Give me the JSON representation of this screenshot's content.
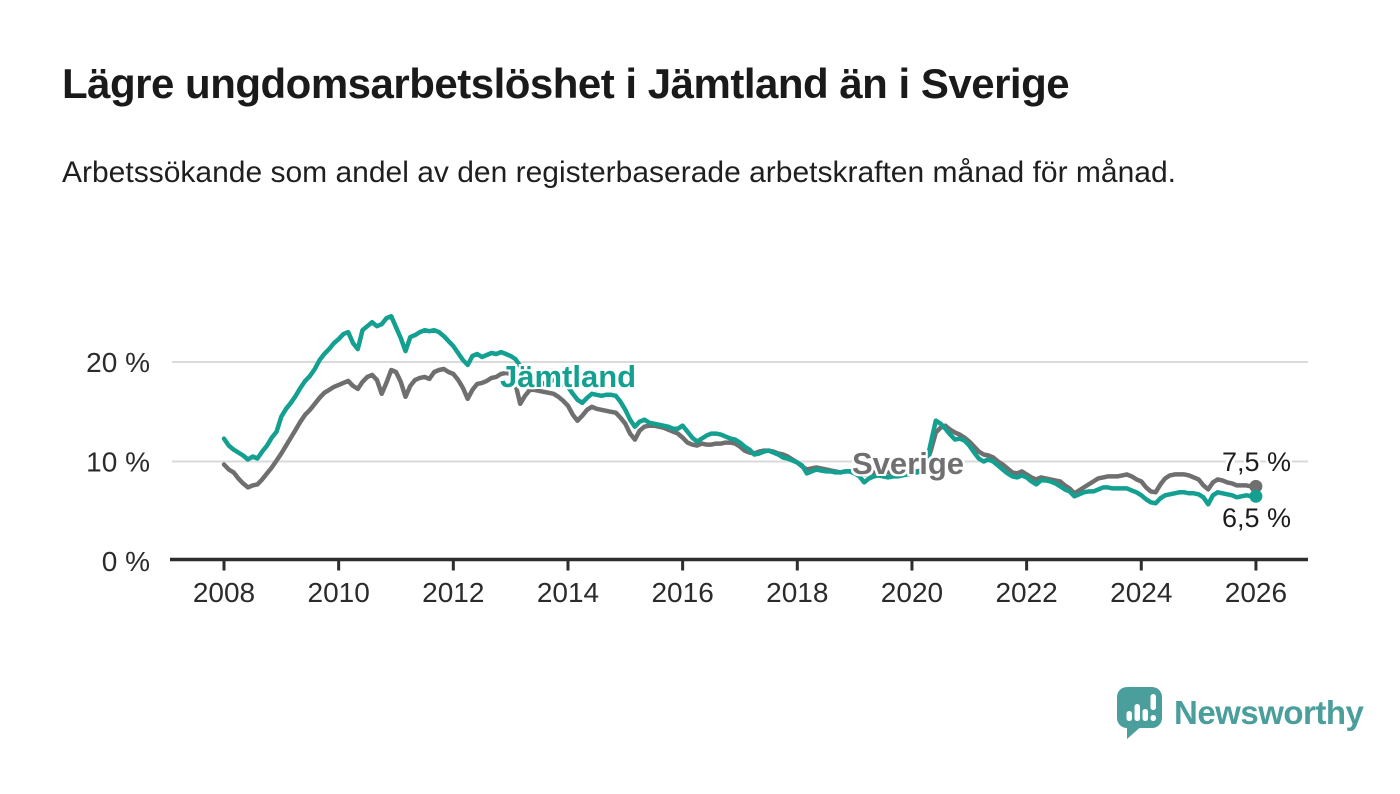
{
  "header": {
    "title": "Lägre ungdomsarbetslöshet i Jämtland än i Sverige",
    "subtitle": "Arbetssökande som andel av den registerbaserade arbetskraften månad för månad."
  },
  "branding": {
    "logo_text": "Newsworthy",
    "logo_color": "#4a9e9b"
  },
  "chart_data": {
    "type": "line",
    "title": "Lägre ungdomsarbetslöshet i Jämtland än i Sverige",
    "xlabel": "",
    "ylabel": "",
    "unit": "%",
    "grid": "horizontal",
    "legend": "inline-labels",
    "xlim": [
      2007.1,
      2026.9
    ],
    "ylim": [
      0,
      26
    ],
    "x_ticks": [
      "2008",
      "2010",
      "2012",
      "2014",
      "2016",
      "2018",
      "2020",
      "2022",
      "2024",
      "2026"
    ],
    "x_tick_years": [
      2008,
      2010,
      2012,
      2014,
      2016,
      2018,
      2020,
      2022,
      2024,
      2026
    ],
    "y_ticks": [
      {
        "v": 0,
        "label": "0 %"
      },
      {
        "v": 10,
        "label": "10 %"
      },
      {
        "v": 20,
        "label": "20 %"
      }
    ],
    "colors": {
      "jamtland": "#14a091",
      "sverige": "#6f6f6f",
      "gridline": "#dadada",
      "axis": "#2d2d2d",
      "tick_text": "#2b2b2b"
    },
    "series": [
      {
        "name": "Jämtland",
        "color": "#14a091",
        "end_label": "6,5 %",
        "end_value": 6.5,
        "start_year": 2008,
        "points_per_year": 12,
        "values": [
          12.3,
          11.6,
          11.2,
          10.9,
          10.6,
          10.2,
          10.5,
          10.3,
          11.0,
          11.6,
          12.4,
          13.0,
          14.5,
          15.3,
          15.9,
          16.6,
          17.4,
          18.1,
          18.6,
          19.3,
          20.2,
          20.8,
          21.3,
          21.9,
          22.3,
          22.8,
          23.0,
          21.9,
          21.3,
          23.2,
          23.6,
          24.0,
          23.6,
          23.8,
          24.4,
          24.6,
          23.5,
          22.4,
          21.1,
          22.5,
          22.7,
          23.0,
          23.2,
          23.1,
          23.2,
          23.0,
          22.6,
          22.1,
          21.6,
          20.9,
          20.2,
          19.7,
          20.6,
          20.8,
          20.5,
          20.7,
          20.9,
          20.8,
          21.0,
          20.8,
          20.6,
          20.3,
          19.6,
          19.2,
          18.9,
          18.5,
          18.1,
          17.8,
          18.0,
          18.2,
          17.9,
          17.7,
          17.5,
          16.8,
          16.2,
          15.9,
          16.4,
          16.8,
          16.7,
          16.6,
          16.7,
          16.7,
          16.6,
          16.0,
          15.2,
          14.2,
          13.5,
          14.0,
          14.2,
          13.9,
          13.8,
          13.7,
          13.6,
          13.5,
          13.3,
          13.3,
          13.6,
          13.0,
          12.4,
          12.0,
          12.3,
          12.6,
          12.8,
          12.8,
          12.7,
          12.5,
          12.3,
          12.2,
          11.9,
          11.5,
          11.2,
          10.7,
          10.8,
          11.0,
          11.1,
          10.9,
          10.7,
          10.4,
          10.3,
          10.1,
          9.9,
          9.6,
          8.8,
          9.0,
          9.2,
          9.1,
          9.0,
          9.0,
          8.9,
          8.9,
          9.0,
          9.0,
          8.8,
          8.5,
          7.9,
          8.3,
          8.5,
          8.6,
          8.5,
          8.4,
          8.5,
          8.5,
          8.6,
          8.7,
          8.8,
          8.9,
          9.0,
          9.8,
          12.0,
          14.1,
          13.8,
          13.3,
          12.7,
          12.2,
          12.3,
          12.1,
          11.6,
          10.9,
          10.3,
          10.0,
          10.2,
          10.0,
          9.6,
          9.2,
          8.8,
          8.5,
          8.4,
          8.6,
          8.4,
          8.0,
          7.7,
          8.1,
          8.1,
          8.0,
          7.8,
          7.5,
          7.2,
          7.0,
          6.5,
          6.7,
          6.9,
          7.0,
          7.0,
          7.2,
          7.4,
          7.4,
          7.3,
          7.3,
          7.3,
          7.3,
          7.1,
          6.9,
          6.6,
          6.2,
          5.9,
          5.8,
          6.3,
          6.6,
          6.7,
          6.8,
          6.9,
          6.9,
          6.8,
          6.8,
          6.7,
          6.4,
          5.7,
          6.6,
          6.9,
          6.8,
          6.7,
          6.6,
          6.4,
          6.5,
          6.6,
          6.5,
          6.5
        ]
      },
      {
        "name": "Sverige",
        "color": "#6f6f6f",
        "end_label": "7,5 %",
        "end_value": 7.5,
        "start_year": 2008,
        "points_per_year": 12,
        "values": [
          9.7,
          9.2,
          8.9,
          8.3,
          7.8,
          7.4,
          7.6,
          7.7,
          8.2,
          8.8,
          9.4,
          10.1,
          10.8,
          11.6,
          12.4,
          13.2,
          14.0,
          14.7,
          15.2,
          15.8,
          16.4,
          16.9,
          17.2,
          17.5,
          17.7,
          17.9,
          18.1,
          17.6,
          17.3,
          18.0,
          18.5,
          18.7,
          18.2,
          16.8,
          17.9,
          19.2,
          19.0,
          18.0,
          16.5,
          17.6,
          18.2,
          18.4,
          18.5,
          18.3,
          19.0,
          19.2,
          19.3,
          19.0,
          18.8,
          18.2,
          17.4,
          16.3,
          17.2,
          17.8,
          17.9,
          18.1,
          18.4,
          18.5,
          18.8,
          18.9,
          18.8,
          17.8,
          15.8,
          16.6,
          17.2,
          17.2,
          17.1,
          17.0,
          16.9,
          16.8,
          16.5,
          16.1,
          15.6,
          14.7,
          14.1,
          14.6,
          15.2,
          15.5,
          15.3,
          15.2,
          15.1,
          15.0,
          14.9,
          14.4,
          13.8,
          12.8,
          12.2,
          13.1,
          13.5,
          13.6,
          13.6,
          13.5,
          13.4,
          13.2,
          13.0,
          12.8,
          12.4,
          11.9,
          11.7,
          11.6,
          11.8,
          11.7,
          11.7,
          11.8,
          11.8,
          11.9,
          11.9,
          11.8,
          11.5,
          11.1,
          10.9,
          10.8,
          11.0,
          11.1,
          11.1,
          11.0,
          10.8,
          10.7,
          10.5,
          10.2,
          9.9,
          9.5,
          9.2,
          9.3,
          9.4,
          9.3,
          9.2,
          9.1,
          9.0,
          8.9,
          9.0,
          9.0,
          8.9,
          8.8,
          8.7,
          8.8,
          8.9,
          9.0,
          8.9,
          8.9,
          8.8,
          8.8,
          8.9,
          9.0,
          9.0,
          9.0,
          9.1,
          9.8,
          11.2,
          12.9,
          13.4,
          13.6,
          13.2,
          12.9,
          12.7,
          12.4,
          12.0,
          11.5,
          11.0,
          10.7,
          10.6,
          10.4,
          10.0,
          9.7,
          9.3,
          8.9,
          8.8,
          9.0,
          8.7,
          8.4,
          8.2,
          8.4,
          8.3,
          8.2,
          8.1,
          8.0,
          7.6,
          7.3,
          6.8,
          7.1,
          7.4,
          7.7,
          8.0,
          8.3,
          8.4,
          8.5,
          8.5,
          8.5,
          8.6,
          8.7,
          8.5,
          8.2,
          8.0,
          7.4,
          7.0,
          6.9,
          7.7,
          8.3,
          8.6,
          8.7,
          8.7,
          8.7,
          8.6,
          8.4,
          8.2,
          7.6,
          7.2,
          7.9,
          8.2,
          8.1,
          7.9,
          7.8,
          7.6,
          7.6,
          7.6,
          7.5,
          7.5
        ]
      }
    ]
  }
}
